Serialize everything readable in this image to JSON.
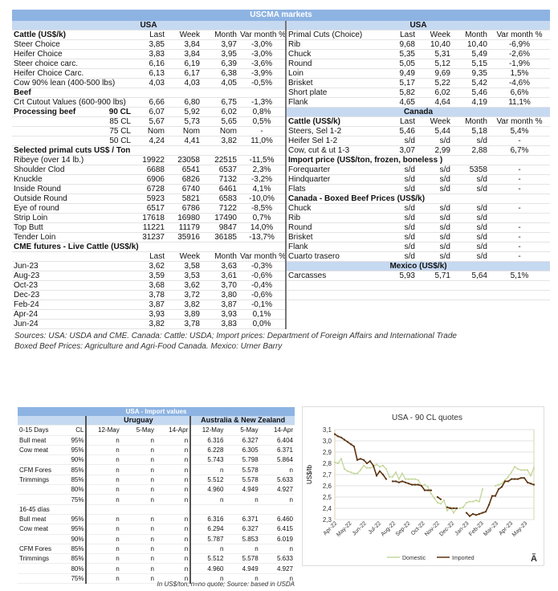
{
  "title": "USCMA markets",
  "cols": [
    "Last",
    "Week",
    "Month",
    "Var month %"
  ],
  "left": [
    {
      "t": "sec",
      "l": "USA"
    },
    {
      "t": "hd",
      "l": "Cattle (US$/k)",
      "v": [
        "Last",
        "Week",
        "Month",
        "Var month %"
      ]
    },
    {
      "l": "Steer Choice",
      "v": [
        "3,85",
        "3,84",
        "3,97",
        "-3,0%"
      ]
    },
    {
      "l": "Heifer Choice",
      "v": [
        "3,83",
        "3,84",
        "3,95",
        "-3,0%"
      ]
    },
    {
      "l": "Steer choice carc.",
      "v": [
        "6,16",
        "6,19",
        "6,39",
        "-3,6%"
      ]
    },
    {
      "l": "Heifer Choice Carc.",
      "v": [
        "6,13",
        "6,17",
        "6,38",
        "-3,9%"
      ]
    },
    {
      "l": "Cow 90% lean (400-500 lbs)",
      "v": [
        "4,03",
        "4,03",
        "4,05",
        "-0,5%"
      ]
    },
    {
      "t": "bold",
      "l": "Beef",
      "v": [
        "",
        "",
        "",
        ""
      ]
    },
    {
      "l": "Crt Cutout Values (600-900 lbs)",
      "v": [
        "6,66",
        "6,80",
        "6,75",
        "-1,3%"
      ]
    },
    {
      "t": "bold",
      "l": "Processing beef",
      "s": "90 CL",
      "v": [
        "6,07",
        "5,92",
        "6,02",
        "0,8%"
      ]
    },
    {
      "l": "",
      "s": "85 CL",
      "v": [
        "5,67",
        "5,73",
        "5,65",
        "0,5%"
      ]
    },
    {
      "l": "",
      "s": "75 CL",
      "v": [
        "Nom",
        "Nom",
        "Nom",
        "-"
      ]
    },
    {
      "l": "",
      "s": "50 CL",
      "v": [
        "4,24",
        "4,41",
        "3,82",
        "11,0%"
      ]
    },
    {
      "t": "bold",
      "l": "Selected primal cuts US$ / Ton",
      "v": [
        "",
        "",
        "",
        ""
      ]
    },
    {
      "l": "Ribeye (over 14 lb.)",
      "v": [
        "19922",
        "23058",
        "22515",
        "-11,5%"
      ]
    },
    {
      "l": "Shoulder Clod",
      "v": [
        "6688",
        "6541",
        "6537",
        "2,3%"
      ]
    },
    {
      "l": "Knuckle",
      "v": [
        "6906",
        "6826",
        "7132",
        "-3,2%"
      ]
    },
    {
      "l": "Inside Round",
      "v": [
        "6728",
        "6740",
        "6461",
        "4,1%"
      ]
    },
    {
      "l": "Outside Round",
      "v": [
        "5923",
        "5821",
        "6583",
        "-10,0%"
      ]
    },
    {
      "l": "Eye of round",
      "v": [
        "6517",
        "6786",
        "7122",
        "-8,5%"
      ]
    },
    {
      "l": "Strip Loin",
      "v": [
        "17618",
        "16980",
        "17490",
        "0,7%"
      ]
    },
    {
      "l": "Top Butt",
      "v": [
        "11221",
        "11179",
        "9847",
        "14,0%"
      ]
    },
    {
      "l": "Tender Loin",
      "v": [
        "31237",
        "35916",
        "36185",
        "-13,7%"
      ]
    },
    {
      "t": "bold",
      "l": "CME futures - Live Cattle (US$/k)",
      "v": [
        "",
        "",
        "",
        ""
      ]
    },
    {
      "l": "",
      "v": [
        "Last",
        "Week",
        "Month",
        "Var month %"
      ]
    },
    {
      "l": "Jun-23",
      "v": [
        "3,62",
        "3,58",
        "3,63",
        "-0,3%"
      ]
    },
    {
      "l": "Aug-23",
      "v": [
        "3,59",
        "3,53",
        "3,61",
        "-0,6%"
      ]
    },
    {
      "l": "Oct-23",
      "v": [
        "3,68",
        "3,62",
        "3,70",
        "-0,4%"
      ]
    },
    {
      "l": "Dec-23",
      "v": [
        "3,78",
        "3,72",
        "3,80",
        "-0,6%"
      ]
    },
    {
      "l": "Feb-24",
      "v": [
        "3,87",
        "3,82",
        "3,87",
        "-0,1%"
      ]
    },
    {
      "l": "Apr-24",
      "v": [
        "3,93",
        "3,89",
        "3,93",
        "0,1%"
      ]
    },
    {
      "l": "Jun-24",
      "v": [
        "3,82",
        "3,78",
        "3,83",
        "0,0%"
      ]
    }
  ],
  "right": [
    {
      "t": "sec",
      "l": "USA"
    },
    {
      "l": "Primal Cuts (Choice)",
      "v": [
        "Last",
        "Week",
        "Month",
        "Var month %"
      ]
    },
    {
      "l": "Rib",
      "v": [
        "9,68",
        "10,40",
        "10,40",
        "-6,9%"
      ]
    },
    {
      "l": "Chuck",
      "v": [
        "5,35",
        "5,31",
        "5,49",
        "-2,6%"
      ]
    },
    {
      "l": "Round",
      "v": [
        "5,05",
        "5,12",
        "5,15",
        "-1,9%"
      ]
    },
    {
      "l": "Loin",
      "v": [
        "9,49",
        "9,69",
        "9,35",
        "1,5%"
      ]
    },
    {
      "l": "Brisket",
      "v": [
        "5,17",
        "5,22",
        "5,42",
        "-4,6%"
      ]
    },
    {
      "l": "Short plate",
      "v": [
        "5,82",
        "6,02",
        "5,46",
        "6,6%"
      ]
    },
    {
      "l": "Flank",
      "v": [
        "4,65",
        "4,64",
        "4,19",
        "11,1%"
      ]
    },
    {
      "t": "sec",
      "l": "Canada"
    },
    {
      "t": "bold",
      "l": "Cattle (US$/k)",
      "v": [
        "Last",
        "Week",
        "Month",
        "Var month %"
      ]
    },
    {
      "l": "Steers, Sel 1-2",
      "v": [
        "5,46",
        "5,44",
        "5,18",
        "5,4%"
      ]
    },
    {
      "l": "Heifer Sel 1-2",
      "v": [
        "s/d",
        "s/d",
        "s/d",
        "-"
      ]
    },
    {
      "l": "Cow, cut & ut 1-3",
      "v": [
        "3,07",
        "2,99",
        "2,88",
        "6,7%"
      ]
    },
    {
      "t": "bold",
      "l": "Import price (US$/ton, frozen, boneless )",
      "v": [
        "",
        "",
        "",
        ""
      ]
    },
    {
      "l": "Forequarter",
      "v": [
        "s/d",
        "s/d",
        "5358",
        "-"
      ]
    },
    {
      "l": "Hindquarter",
      "v": [
        "s/d",
        "s/d",
        "s/d",
        "-"
      ]
    },
    {
      "l": "Flats",
      "v": [
        "s/d",
        "s/d",
        "s/d",
        "-"
      ]
    },
    {
      "t": "bold",
      "l": "Canada - Boxed Beef Prices (US$/k)",
      "v": [
        "",
        "",
        "",
        ""
      ]
    },
    {
      "l": "Chuck",
      "v": [
        "s/d",
        "s/d",
        "s/d",
        "-"
      ]
    },
    {
      "l": "Rib",
      "v": [
        "s/d",
        "s/d",
        "s/d",
        ""
      ]
    },
    {
      "l": "Round",
      "v": [
        "s/d",
        "s/d",
        "s/d",
        "-"
      ]
    },
    {
      "l": "Brisket",
      "v": [
        "s/d",
        "s/d",
        "s/d",
        "-"
      ]
    },
    {
      "l": "Flank",
      "v": [
        "s/d",
        "s/d",
        "s/d",
        "-"
      ]
    },
    {
      "l": "Cuarto trasero",
      "v": [
        "s/d",
        "s/d",
        "s/d",
        "-"
      ]
    },
    {
      "t": "sec",
      "l": "Mexico (US$/k)"
    },
    {
      "l": "Carcasses",
      "v": [
        "5,93",
        "5,71",
        "5,64",
        "5,1%"
      ]
    },
    {
      "l": "",
      "v": [
        "",
        "",
        "",
        ""
      ]
    },
    {
      "l": "",
      "v": [
        "",
        "",
        "",
        ""
      ]
    }
  ],
  "sources": [
    "Sources: USA: USDA and CME. Canada: Cattle: USDA; Import prices: Department of Foreign Affairs and International Trade",
    "Boxed Beef Prices: Agriculture and Agri-Food Canada. Mexico: Urner Barry"
  ],
  "imports": {
    "title": "USA - Import values",
    "groups": [
      "Uruguay",
      "Australia & New Zealand"
    ],
    "header": [
      "0-15 Days",
      "CL",
      "12-May",
      "5-May",
      "14-Apr",
      "12-May",
      "5-May",
      "14-Apr"
    ],
    "rows": [
      [
        "Bull meat",
        "95%",
        "n",
        "n",
        "n",
        "6.316",
        "6.327",
        "6.404"
      ],
      [
        "Cow meat",
        "95%",
        "n",
        "n",
        "n",
        "6.228",
        "6.305",
        "6.371"
      ],
      [
        "",
        "90%",
        "n",
        "n",
        "n",
        "5.743",
        "5.798",
        "5.864"
      ],
      [
        "CFM Fores",
        "85%",
        "n",
        "n",
        "n",
        "n",
        "5.578",
        "n"
      ],
      [
        "Trimmings",
        "85%",
        "n",
        "n",
        "n",
        "5.512",
        "5.578",
        "5.633"
      ],
      [
        "",
        "80%",
        "n",
        "n",
        "n",
        "4.960",
        "4.949",
        "4.927"
      ],
      [
        "",
        "75%",
        "n",
        "n",
        "n",
        "n",
        "n",
        "n"
      ],
      [
        "16-45 días",
        "",
        "",
        "",
        "",
        "",
        "",
        ""
      ],
      [
        "Bull meat",
        "95%",
        "n",
        "n",
        "n",
        "6.316",
        "6.371",
        "6.460"
      ],
      [
        "Cow meat",
        "95%",
        "n",
        "n",
        "n",
        "6.294",
        "6.327",
        "6.415"
      ],
      [
        "",
        "90%",
        "n",
        "n",
        "n",
        "5.787",
        "5.853",
        "6.019"
      ],
      [
        "CFM Fores",
        "85%",
        "n",
        "n",
        "n",
        "n",
        "n",
        "n"
      ],
      [
        "Trimmings",
        "85%",
        "n",
        "n",
        "n",
        "5.512",
        "5.578",
        "5.633"
      ],
      [
        "",
        "80%",
        "n",
        "n",
        "n",
        "4.960",
        "4.949",
        "4.927"
      ],
      [
        "",
        "75%",
        "n",
        "n",
        "n",
        "n",
        "n",
        "n"
      ]
    ],
    "note": "In US$/ton; n=no quote; Source: based in USDA"
  },
  "chart_data": {
    "type": "line",
    "title": "USA - 90 CL quotes",
    "ylabel": "US$/lb",
    "ylim": [
      2.3,
      3.1
    ],
    "yticks": [
      "2,3",
      "2,4",
      "2,5",
      "2,6",
      "2,7",
      "2,8",
      "2,9",
      "3,0",
      "3,1"
    ],
    "xticks": [
      "Apr-22",
      "May-22",
      "Jun-22",
      "Jul-22",
      "Aug-22",
      "Sep-22",
      "Oct-22",
      "Nov-22",
      "Dec-22",
      "Jan-23",
      "Feb-23",
      "Mar-23",
      "Apr-23",
      "May-23"
    ],
    "grid": true,
    "legend": "bottom",
    "corner_mark": "Ã",
    "series": [
      {
        "name": "Domestic",
        "color": "#c4d79b",
        "values": [
          2.81,
          2.8,
          2.84,
          2.75,
          2.73,
          2.72,
          2.71,
          2.71,
          2.74,
          2.78,
          2.76,
          2.76,
          2.77,
          2.79,
          2.77,
          2.78,
          2.75,
          2.68,
          2.68,
          2.72,
          2.66,
          2.71,
          2.66,
          2.66,
          2.66,
          2.66,
          2.65,
          2.6,
          2.61,
          2.59,
          2.53,
          2.49,
          2.45,
          2.44,
          2.47,
          2.38,
          2.41,
          2.36,
          2.4,
          2.4,
          2.41,
          2.45,
          2.46,
          2.46,
          2.47,
          2.46,
          2.57,
          null,
          null,
          null,
          2.6,
          2.61,
          2.62,
          2.65,
          2.68,
          2.72,
          2.77,
          2.75,
          2.74,
          2.74,
          2.74,
          2.69,
          2.76
        ]
      },
      {
        "name": "Imported",
        "color": "#5c3310",
        "values": [
          3.06,
          3.04,
          3.03,
          3.01,
          2.99,
          2.97,
          2.95,
          2.83,
          2.84,
          2.83,
          2.8,
          2.82,
          2.78,
          2.69,
          2.73,
          2.7,
          2.66,
          null,
          2.64,
          2.64,
          2.63,
          2.64,
          2.63,
          2.62,
          2.61,
          2.61,
          2.61,
          2.6,
          2.56,
          2.56,
          2.56,
          null,
          2.5,
          2.48,
          null,
          2.41,
          2.4,
          2.4,
          2.4,
          null,
          null,
          2.36,
          2.33,
          2.35,
          2.34,
          2.35,
          2.36,
          2.37,
          2.43,
          2.51,
          2.51,
          2.57,
          2.59,
          2.64,
          2.64,
          2.66,
          2.66,
          2.66,
          2.67,
          2.67,
          2.63,
          2.62,
          2.61
        ]
      }
    ]
  }
}
